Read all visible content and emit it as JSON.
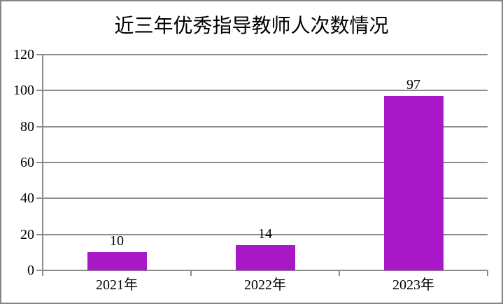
{
  "chart_data": {
    "type": "bar",
    "title": "近三年优秀指导教师人次数情况",
    "categories": [
      "2021年",
      "2022年",
      "2023年"
    ],
    "values": [
      10,
      14,
      97
    ],
    "data_labels": [
      "10",
      "14",
      "97"
    ],
    "xlabel": "",
    "ylabel": "",
    "ylim": [
      0,
      120
    ],
    "yticks": [
      0,
      20,
      40,
      60,
      80,
      100,
      120
    ],
    "ytick_labels": [
      "0",
      "20",
      "40",
      "60",
      "80",
      "100",
      "120"
    ],
    "grid": true,
    "legend": "none",
    "colors": {
      "bar_fill": "#A818C6",
      "grid_line": "#8C8C8C",
      "frame_border": "#858585",
      "text": "#000000",
      "background": "#FFFFFF"
    }
  }
}
